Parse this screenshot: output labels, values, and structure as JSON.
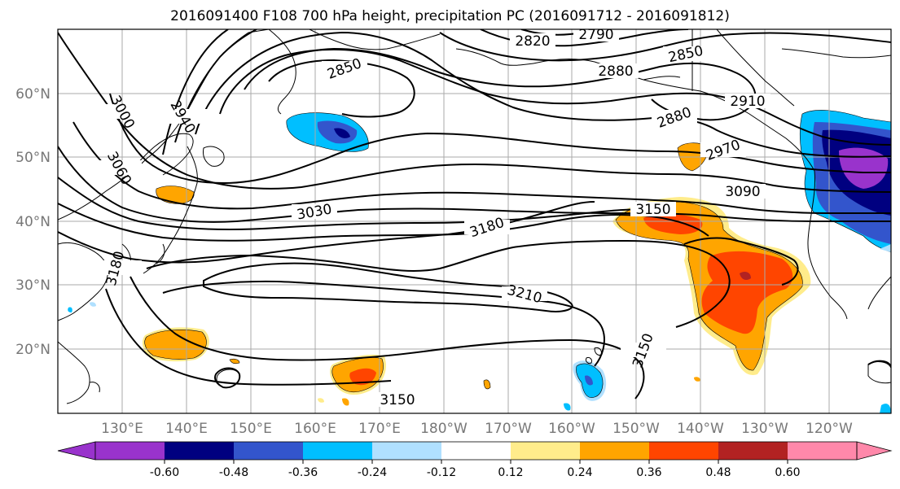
{
  "title": "2016091400 F108 700 hPa height, precipitation PC (2016091712 - 2016091812)",
  "map": {
    "lat_labels": [
      "60°N",
      "50°N",
      "40°N",
      "30°N",
      "20°N"
    ],
    "lon_labels": [
      "130°E",
      "140°E",
      "150°E",
      "160°E",
      "170°E",
      "180°W",
      "170°W",
      "160°W",
      "150°W",
      "140°W",
      "130°W",
      "120°W"
    ],
    "contour_labels": [
      "2790",
      "2820",
      "2850",
      "2850",
      "2880",
      "2880",
      "2910",
      "2940",
      "2970",
      "3000",
      "3030",
      "3060",
      "3090",
      "3150",
      "3180",
      "3210",
      "3150",
      "3150",
      "3180"
    ]
  },
  "colorbar": {
    "labels": [
      "-0.60",
      "-0.48",
      "-0.36",
      "-0.24",
      "-0.12",
      "0.12",
      "0.24",
      "0.36",
      "0.48",
      "0.60"
    ],
    "colors": [
      "#9933cc",
      "#000080",
      "#3355cc",
      "#00bfff",
      "#b0e0ff",
      "#ffffff",
      "#ffec8b",
      "#ffa500",
      "#ff4500",
      "#b22222",
      "#ff88aa"
    ]
  }
}
